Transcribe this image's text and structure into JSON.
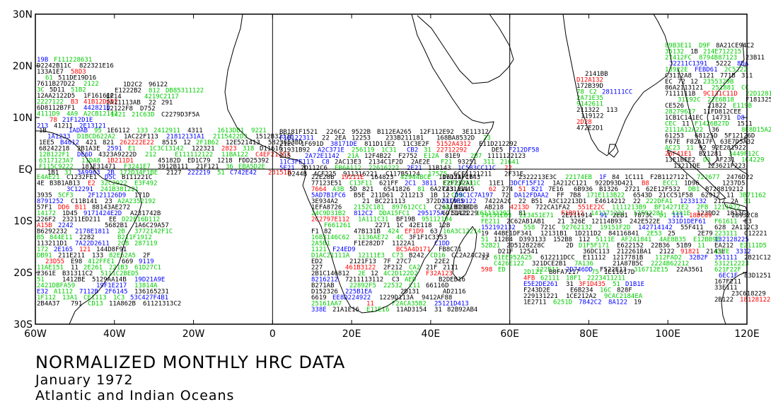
{
  "title": {
    "main": "NORMALIZED MONTHLY HRC DATA",
    "month": "January 1972",
    "region": "Atlantic and Indian Oceans"
  },
  "map": {
    "lon_range": [
      -60,
      120
    ],
    "lat_range": [
      -30,
      30
    ],
    "lon_ticks": [
      {
        "value": -60,
        "label": "60W"
      },
      {
        "value": -40,
        "label": "40W"
      },
      {
        "value": -20,
        "label": "20W"
      },
      {
        "value": 0,
        "label": "0"
      },
      {
        "value": 20,
        "label": "20E"
      },
      {
        "value": 40,
        "label": "40E"
      },
      {
        "value": 60,
        "label": "60E"
      },
      {
        "value": 80,
        "label": "80E"
      },
      {
        "value": 100,
        "label": "100E"
      },
      {
        "value": 120,
        "label": "120E"
      }
    ],
    "lat_ticks": [
      {
        "value": 30,
        "label": "30N"
      },
      {
        "value": 20,
        "label": "20N"
      },
      {
        "value": 10,
        "label": "10N"
      },
      {
        "value": 0,
        "label": "EQ"
      },
      {
        "value": -10,
        "label": "10S"
      },
      {
        "value": -20,
        "label": "20S"
      },
      {
        "value": -30,
        "label": "30S"
      }
    ],
    "reference_lines": {
      "equator": 0,
      "meridians": [
        0,
        60
      ]
    },
    "colors": {
      "low": "#000000",
      "mid": "#00cc00",
      "high": "#0000ff",
      "top": "#ff0000",
      "coast": "#000000"
    }
  }
}
